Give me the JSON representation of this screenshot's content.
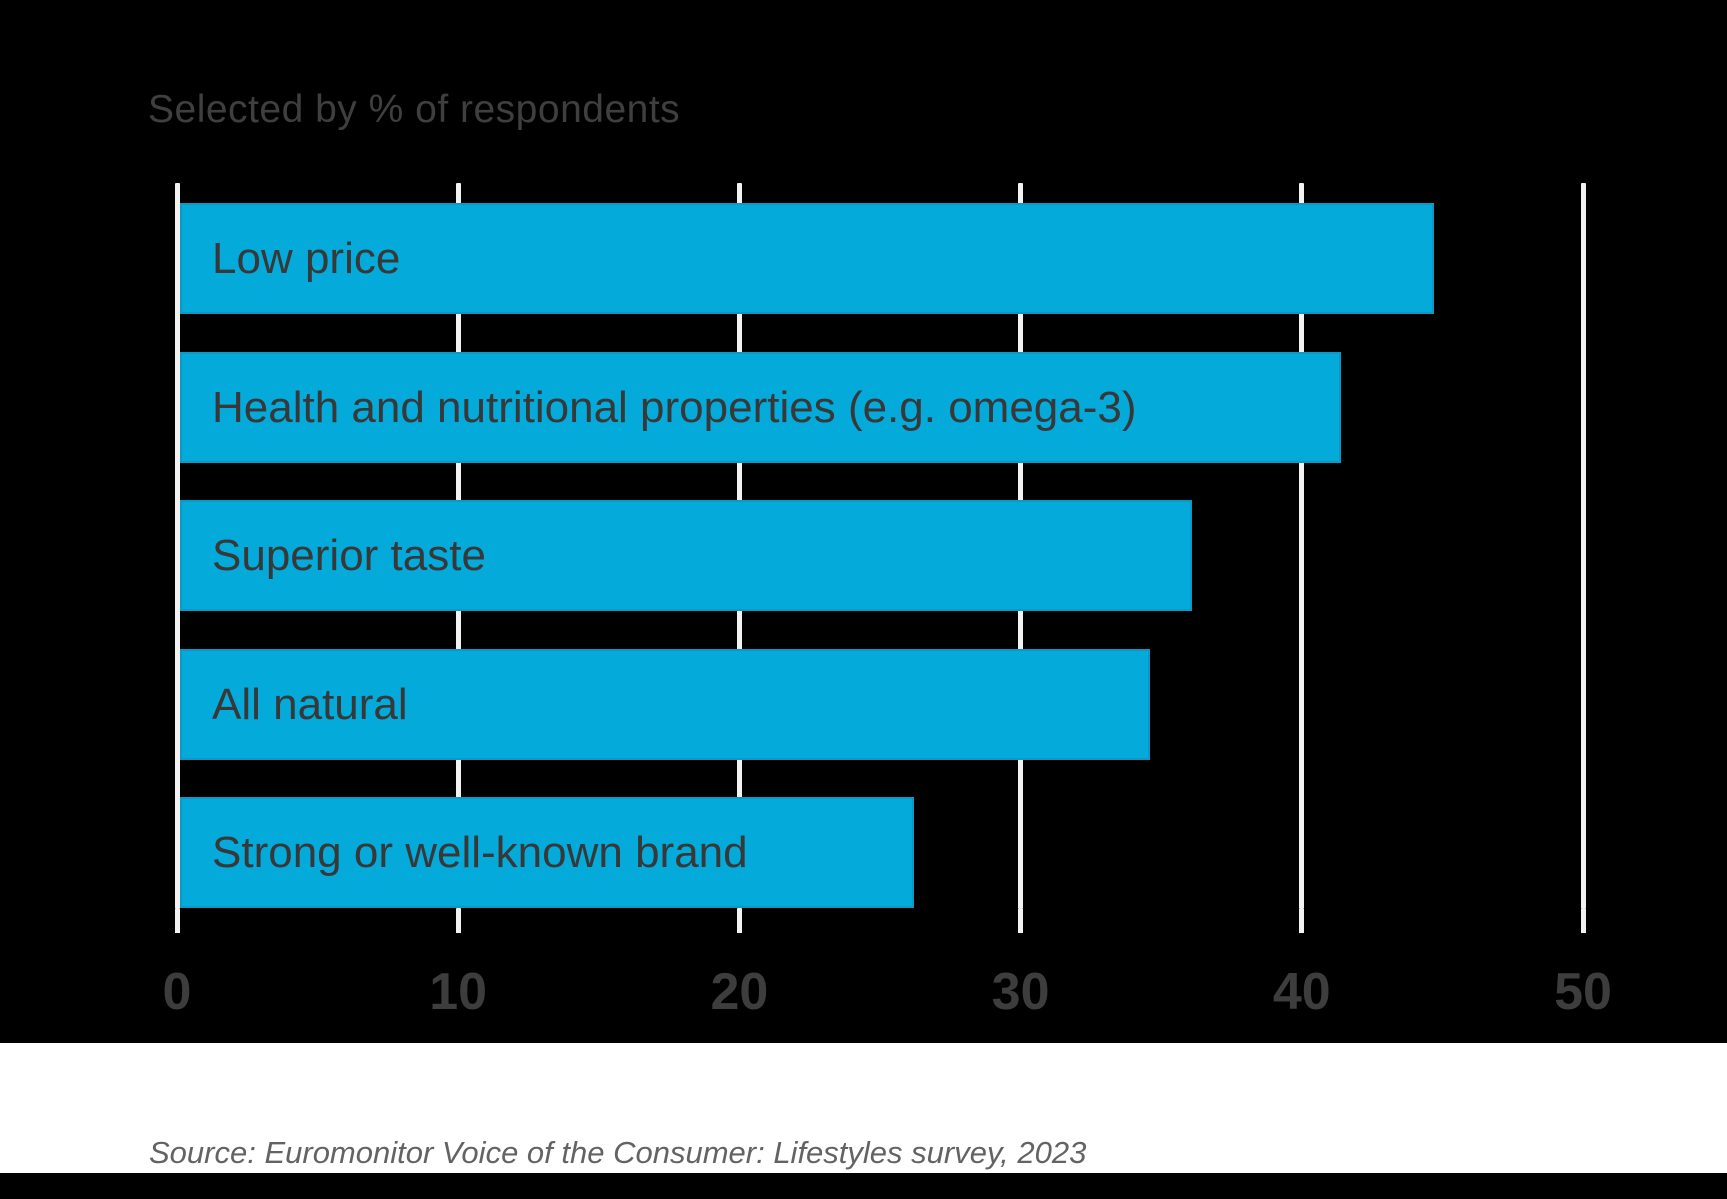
{
  "chart": {
    "subtitle": "Selected by % of respondents",
    "source": "Source: Euromonitor Voice of the Consumer: Lifestyles survey, 2023"
  },
  "chart_data": {
    "type": "bar",
    "orientation": "horizontal",
    "title": "",
    "subtitle": "Selected by % of respondents",
    "xlabel": "",
    "ylabel": "",
    "categories": [
      "Low price",
      "Health and nutritional properties (e.g. omega-3)",
      "Superior taste",
      "All natural",
      "Strong or well-known brand"
    ],
    "values": [
      44.6,
      41.3,
      36.0,
      34.5,
      26.1
    ],
    "unit": "%",
    "xlim": [
      0,
      50
    ],
    "xticks": [
      0,
      10,
      20,
      30,
      40,
      50
    ],
    "grid": true,
    "legend": false,
    "colors": {
      "background": "#000000",
      "bar_fill": "#04abda",
      "bar_border": "#0c99c6",
      "bar_label_text": "#383838",
      "gridline": "#f2f2f2",
      "axis_tick": "#f2f2f2",
      "axis_tick_label_text": "#3d3d3d",
      "subtitle_text": "#3f3f3f",
      "source_band": "#ffffff",
      "source_text": "#636363"
    }
  }
}
